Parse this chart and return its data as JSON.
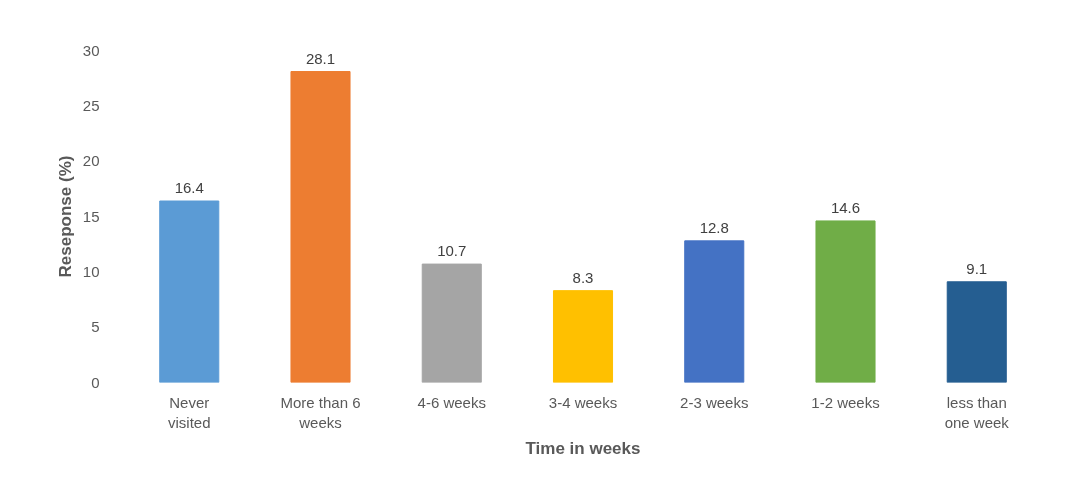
{
  "chart_data": {
    "type": "bar",
    "xlabel": "Time in weeks",
    "ylabel": "Reseponse (%)",
    "categories": [
      "Never visited",
      "More than 6 weeks",
      "4-6 weeks",
      "3-4 weeks",
      "2-3 weeks",
      "1-2 weeks",
      "less than one week"
    ],
    "values": [
      16.4,
      28.1,
      10.7,
      8.3,
      12.8,
      14.6,
      9.1
    ],
    "colors": [
      "#5b9bd5",
      "#ed7d31",
      "#a5a5a5",
      "#ffc000",
      "#4472c4",
      "#70ad47",
      "#255e91"
    ],
    "ylim": [
      0,
      30
    ],
    "yticks": [
      0,
      5,
      10,
      15,
      20,
      25,
      30
    ],
    "grid": false,
    "data_labels": true
  }
}
